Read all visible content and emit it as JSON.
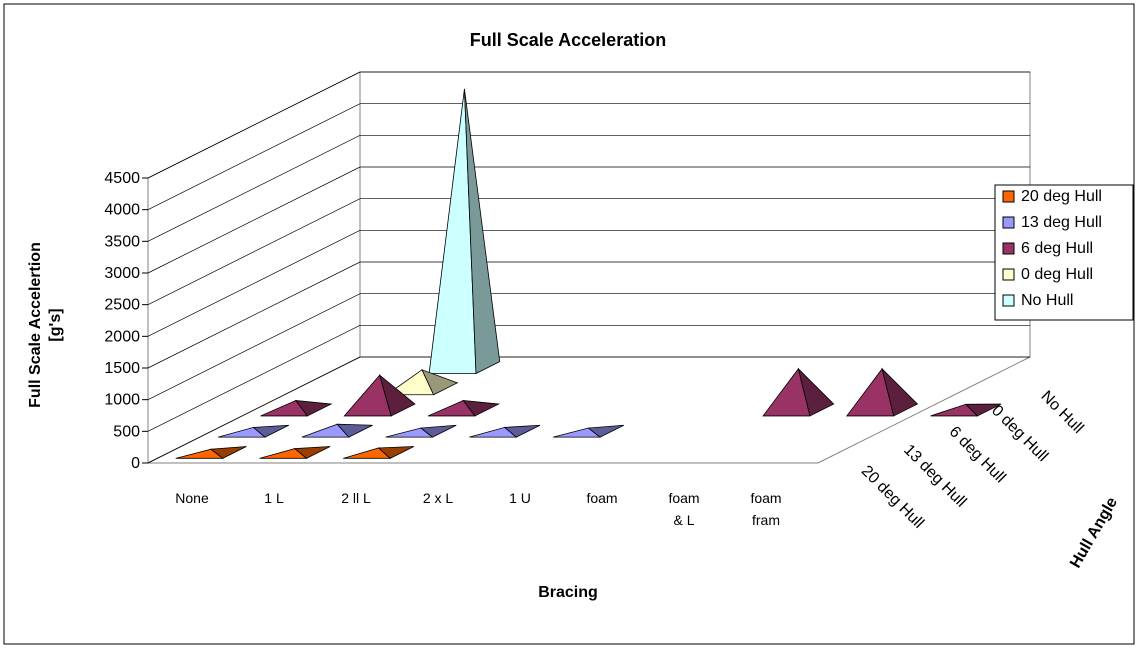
{
  "chart_data": {
    "type": "bar",
    "subtype": "3d-pyramid",
    "title": "Full Scale Acceleration",
    "xlabel": "Bracing",
    "ylabel": "Full Scale Accelertion [g's]",
    "zlabel": "Hull Angle",
    "categories": [
      "None",
      "1 L",
      "2 ll L",
      "2 x L",
      "1 U",
      "foam",
      "foam & L",
      "foam fram"
    ],
    "depth_categories": [
      "20 deg Hull",
      "13 deg Hull",
      "6 deg Hull",
      "0 deg Hull",
      "No Hull"
    ],
    "yticks": [
      "0",
      "500",
      "1000",
      "1500",
      "2000",
      "2500",
      "3000",
      "3500",
      "4000",
      "4500"
    ],
    "ylim": [
      0,
      4500
    ],
    "grid": true,
    "legend_position": "right",
    "series": [
      {
        "name": "20 deg Hull",
        "color": "#FF6600",
        "values": [
          50,
          60,
          70,
          0,
          0,
          0,
          0,
          0
        ]
      },
      {
        "name": "13 deg Hull",
        "color": "#9999FF",
        "values": [
          60,
          110,
          50,
          60,
          50,
          0,
          0,
          0
        ]
      },
      {
        "name": "6 deg Hull",
        "color": "#993366",
        "values": [
          150,
          550,
          150,
          0,
          0,
          0,
          650,
          650
        ]
      },
      {
        "name": "0 deg Hull",
        "color": "#FFFFCC",
        "values": [
          0,
          300,
          0,
          0,
          0,
          0,
          0,
          0
        ]
      },
      {
        "name": "No Hull",
        "color": "#CCFFFF",
        "values": [
          0,
          4400,
          0,
          0,
          0,
          0,
          0,
          0
        ]
      }
    ],
    "extra_points": [
      {
        "series": "6 deg Hull",
        "category_label": "",
        "value": 90
      }
    ]
  }
}
